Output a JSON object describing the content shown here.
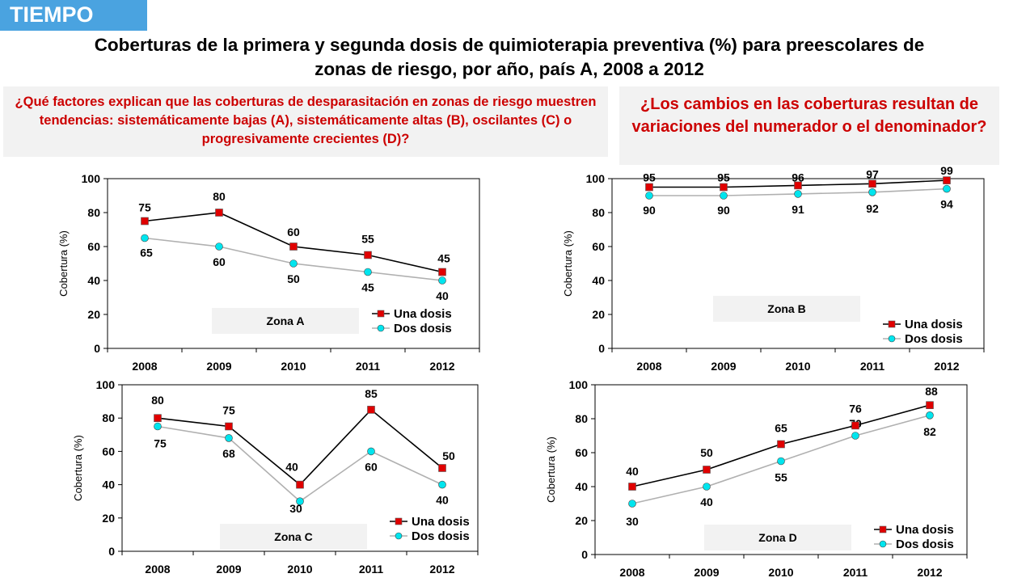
{
  "tag": "TIEMPO",
  "title_line1": "Coberturas de la primera y segunda dosis de quimioterapia preventiva (%) para preescolares de",
  "title_line2": "zonas de riesgo, por año, país A, 2008 a 2012",
  "question_left": "¿Qué factores explican que las coberturas de desparasitación en zonas de riesgo muestren tendencias: sistemáticamente bajas (A), sistemáticamente altas (B), oscilantes (C) o progresivamente crecientes (D)?",
  "question_right": "¿Los cambios en las coberturas resultan de variaciones del numerador o el denominador?",
  "colors": {
    "tag_bg": "#4aa3e0",
    "question_text": "#cc0000",
    "question_bg": "#f2f2f2",
    "una_line": "#000000",
    "una_marker": "#e00000",
    "dos_line": "#b0b0b0",
    "dos_marker": "#00e5ee"
  },
  "chart_data": [
    {
      "type": "line",
      "zone_label": "Zona A",
      "categories": [
        "2008",
        "2009",
        "2010",
        "2011",
        "2012"
      ],
      "ylabel": "Cobertura (%)",
      "ylim": [
        0,
        100
      ],
      "yticks": [
        0,
        20,
        40,
        60,
        80,
        100
      ],
      "legend": "bottom-right",
      "series": [
        {
          "name": "Una dosis",
          "values": [
            75,
            80,
            60,
            55,
            45
          ]
        },
        {
          "name": "Dos dosis",
          "values": [
            65,
            60,
            50,
            45,
            40
          ]
        }
      ]
    },
    {
      "type": "line",
      "zone_label": "Zona B",
      "categories": [
        "2008",
        "2009",
        "2010",
        "2011",
        "2012"
      ],
      "ylabel": "Cobertura (%)",
      "ylim": [
        0,
        100
      ],
      "yticks": [
        0,
        20,
        40,
        60,
        80,
        100
      ],
      "legend": "bottom-right",
      "series": [
        {
          "name": "Una dosis",
          "values": [
            95,
            95,
            96,
            97,
            99
          ]
        },
        {
          "name": "Dos dosis",
          "values": [
            90,
            90,
            91,
            92,
            94
          ]
        }
      ]
    },
    {
      "type": "line",
      "zone_label": "Zona C",
      "categories": [
        "2008",
        "2009",
        "2010",
        "2011",
        "2012"
      ],
      "ylabel": "Cobertura (%)",
      "ylim": [
        0,
        100
      ],
      "yticks": [
        0,
        20,
        40,
        60,
        80,
        100
      ],
      "legend": "bottom-right",
      "series": [
        {
          "name": "Una dosis",
          "values": [
            80,
            75,
            40,
            85,
            50
          ]
        },
        {
          "name": "Dos dosis",
          "values": [
            75,
            68,
            30,
            60,
            40
          ]
        }
      ]
    },
    {
      "type": "line",
      "zone_label": "Zona D",
      "categories": [
        "2008",
        "2009",
        "2010",
        "2011",
        "2012"
      ],
      "ylabel": "Cobertura (%)",
      "ylim": [
        0,
        100
      ],
      "yticks": [
        0,
        20,
        40,
        60,
        80,
        100
      ],
      "legend": "bottom-right",
      "series": [
        {
          "name": "Una dosis",
          "values": [
            40,
            50,
            65,
            76,
            88
          ]
        },
        {
          "name": "Dos dosis",
          "values": [
            30,
            40,
            55,
            70,
            82
          ]
        }
      ]
    }
  ]
}
